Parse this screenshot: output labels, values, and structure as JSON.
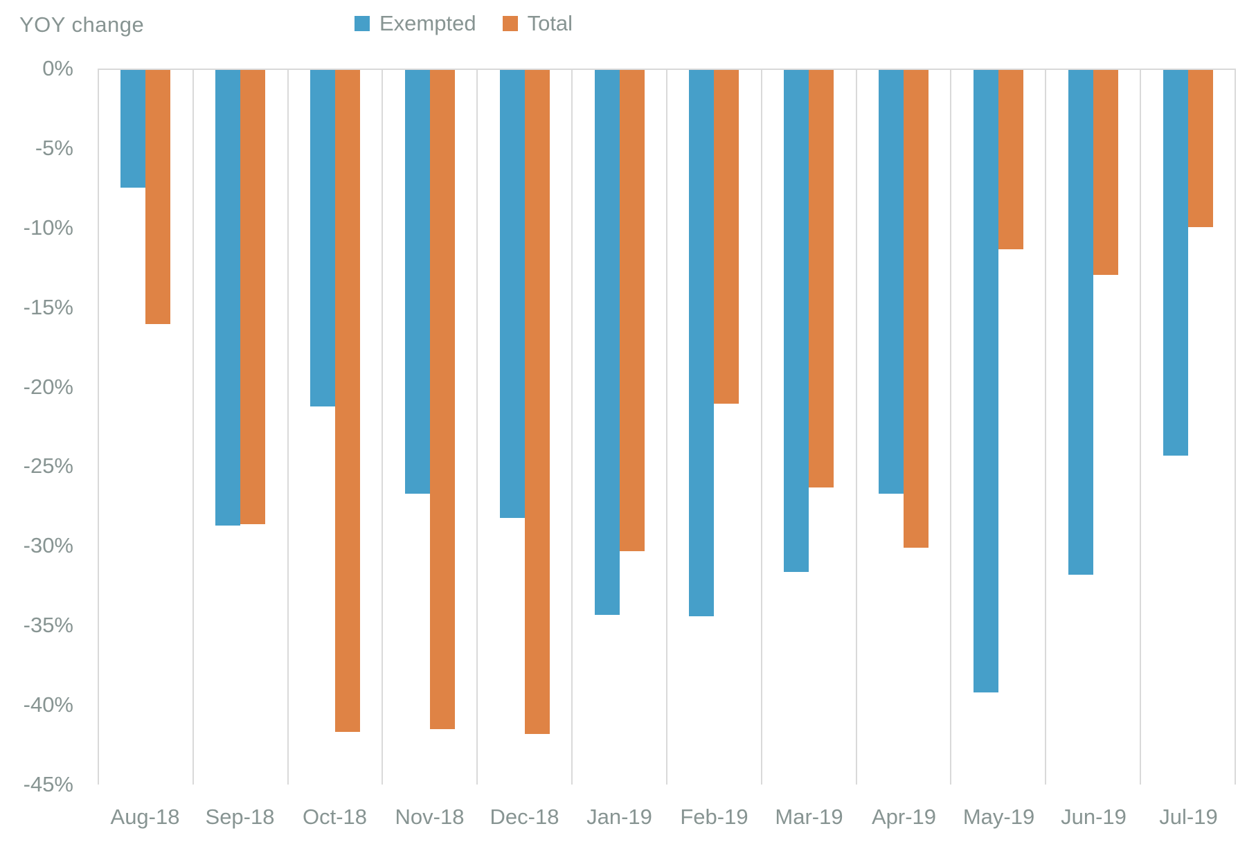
{
  "chart_data": {
    "type": "bar",
    "title": "YOY change",
    "categories": [
      "Aug-18",
      "Sep-18",
      "Oct-18",
      "Nov-18",
      "Dec-18",
      "Jan-19",
      "Feb-19",
      "Mar-19",
      "Apr-19",
      "May-19",
      "Jun-19",
      "Jul-19"
    ],
    "series": [
      {
        "name": "Exempted",
        "color": "#469FC9",
        "values": [
          -7.4,
          -28.7,
          -21.2,
          -26.7,
          -28.2,
          -34.3,
          -34.4,
          -31.6,
          -26.7,
          -39.2,
          -31.8,
          -24.3
        ]
      },
      {
        "name": "Total",
        "color": "#DF8345",
        "values": [
          -16.0,
          -28.6,
          -41.7,
          -41.5,
          -41.8,
          -30.3,
          -21.0,
          -26.3,
          -30.1,
          -11.3,
          -12.9,
          -9.9
        ]
      }
    ],
    "yticks": [
      "0%",
      "-5%",
      "-10%",
      "-15%",
      "-20%",
      "-25%",
      "-30%",
      "-35%",
      "-40%",
      "-45%"
    ],
    "ylim": [
      -45,
      0
    ],
    "ytick_step": 5,
    "xlabel": "",
    "ylabel": "YOY change",
    "legend_position": "top",
    "grid": "vertical-only",
    "grid_color": "#D9D9D9",
    "text_color": "#879492"
  }
}
